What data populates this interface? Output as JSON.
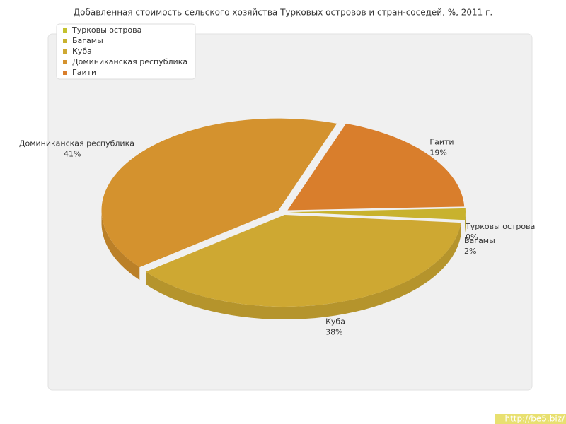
{
  "chart_data": {
    "type": "pie",
    "title": "Добавленная стоимость сельского хозяйства Турковых островов и стран-соседей, %, 2011 г.",
    "categories": [
      "Турковы острова",
      "Багамы",
      "Куба",
      "Доминиканская республика",
      "Гаити"
    ],
    "values": [
      0,
      2,
      38,
      41,
      19
    ],
    "value_labels": [
      "0%",
      "2%",
      "38%",
      "41%",
      "19%"
    ],
    "colors": [
      "#c4c22e",
      "#c8b22e",
      "#cea832",
      "#d4922e",
      "#d97e2c"
    ],
    "legend": "top-left",
    "watermark": "http://be5.biz/"
  }
}
